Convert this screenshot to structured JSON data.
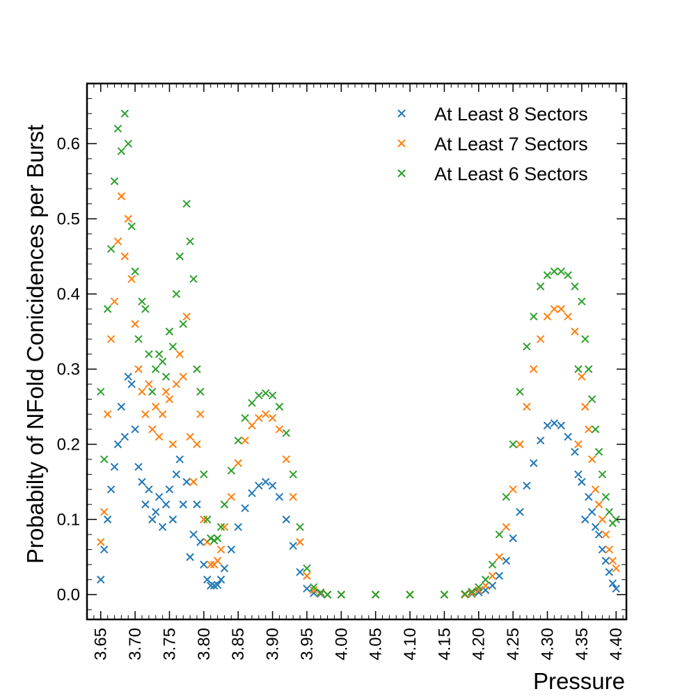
{
  "chart_data": {
    "type": "scatter",
    "title": "",
    "xlabel": "Pressure",
    "ylabel": "Probabilty of NFold Conicidences per Burst",
    "xlim": [
      3.63,
      4.415
    ],
    "ylim": [
      -0.033,
      0.68
    ],
    "xticks": [
      "3.65",
      "3.70",
      "3.75",
      "3.80",
      "3.85",
      "3.90",
      "3.95",
      "4.00",
      "4.05",
      "4.10",
      "4.15",
      "4.20",
      "4.25",
      "4.30",
      "4.35",
      "4.40"
    ],
    "yticks": [
      "0.0",
      "0.1",
      "0.2",
      "0.3",
      "0.4",
      "0.5",
      "0.6"
    ],
    "grid": false,
    "legend_position": "top-right",
    "marker": "x",
    "series": [
      {
        "name": "At Least 8 Sectors",
        "color": "#1f77b4",
        "x": [
          3.65,
          3.655,
          3.66,
          3.665,
          3.67,
          3.675,
          3.68,
          3.685,
          3.69,
          3.695,
          3.7,
          3.705,
          3.71,
          3.715,
          3.72,
          3.725,
          3.73,
          3.735,
          3.74,
          3.745,
          3.75,
          3.755,
          3.76,
          3.765,
          3.77,
          3.775,
          3.78,
          3.785,
          3.79,
          3.795,
          3.8,
          3.805,
          3.81,
          3.815,
          3.82,
          3.825,
          3.83,
          3.84,
          3.85,
          3.86,
          3.87,
          3.88,
          3.89,
          3.9,
          3.91,
          3.92,
          3.93,
          3.94,
          3.95,
          3.96,
          3.97,
          3.98,
          4.0,
          4.05,
          4.1,
          4.15,
          4.18,
          4.19,
          4.2,
          4.21,
          4.22,
          4.23,
          4.24,
          4.25,
          4.26,
          4.27,
          4.28,
          4.29,
          4.3,
          4.31,
          4.32,
          4.33,
          4.34,
          4.345,
          4.35,
          4.355,
          4.36,
          4.365,
          4.37,
          4.375,
          4.38,
          4.385,
          4.39,
          4.395,
          4.4
        ],
        "y": [
          0.02,
          0.06,
          0.1,
          0.14,
          0.17,
          0.2,
          0.25,
          0.21,
          0.29,
          0.28,
          0.22,
          0.17,
          0.15,
          0.12,
          0.14,
          0.1,
          0.11,
          0.13,
          0.09,
          0.12,
          0.14,
          0.1,
          0.16,
          0.18,
          0.12,
          0.15,
          0.05,
          0.08,
          0.12,
          0.07,
          0.04,
          0.02,
          0.012,
          0.012,
          0.013,
          0.02,
          0.035,
          0.06,
          0.09,
          0.115,
          0.135,
          0.145,
          0.15,
          0.145,
          0.13,
          0.1,
          0.065,
          0.03,
          0.008,
          0.002,
          0.001,
          0.0,
          0.0,
          0.0,
          0.0,
          0.0,
          0.0,
          0.001,
          0.003,
          0.006,
          0.012,
          0.025,
          0.045,
          0.075,
          0.11,
          0.145,
          0.175,
          0.205,
          0.225,
          0.228,
          0.225,
          0.21,
          0.19,
          0.16,
          0.15,
          0.1,
          0.13,
          0.11,
          0.09,
          0.08,
          0.06,
          0.045,
          0.03,
          0.015,
          0.008
        ]
      },
      {
        "name": "At Least 7 Sectors",
        "color": "#ff7f0e",
        "x": [
          3.65,
          3.655,
          3.66,
          3.665,
          3.67,
          3.675,
          3.68,
          3.685,
          3.69,
          3.695,
          3.7,
          3.705,
          3.71,
          3.715,
          3.72,
          3.725,
          3.73,
          3.735,
          3.74,
          3.745,
          3.75,
          3.755,
          3.76,
          3.765,
          3.77,
          3.775,
          3.78,
          3.785,
          3.79,
          3.795,
          3.8,
          3.805,
          3.81,
          3.815,
          3.82,
          3.825,
          3.83,
          3.84,
          3.85,
          3.86,
          3.87,
          3.88,
          3.89,
          3.9,
          3.91,
          3.92,
          3.93,
          3.94,
          3.95,
          3.96,
          3.97,
          3.98,
          4.0,
          4.05,
          4.1,
          4.15,
          4.18,
          4.19,
          4.2,
          4.21,
          4.22,
          4.23,
          4.24,
          4.25,
          4.26,
          4.27,
          4.28,
          4.29,
          4.3,
          4.31,
          4.32,
          4.33,
          4.34,
          4.345,
          4.35,
          4.355,
          4.36,
          4.365,
          4.37,
          4.375,
          4.38,
          4.385,
          4.39,
          4.395,
          4.4
        ],
        "y": [
          0.07,
          0.11,
          0.24,
          0.34,
          0.39,
          0.47,
          0.53,
          0.45,
          0.5,
          0.42,
          0.36,
          0.3,
          0.27,
          0.24,
          0.28,
          0.22,
          0.25,
          0.21,
          0.24,
          0.27,
          0.26,
          0.2,
          0.28,
          0.32,
          0.29,
          0.37,
          0.21,
          0.15,
          0.2,
          0.24,
          0.1,
          0.07,
          0.04,
          0.04,
          0.045,
          0.06,
          0.09,
          0.13,
          0.175,
          0.205,
          0.225,
          0.235,
          0.24,
          0.235,
          0.22,
          0.18,
          0.13,
          0.07,
          0.025,
          0.006,
          0.002,
          0.0,
          0.0,
          0.0,
          0.0,
          0.0,
          0.0,
          0.002,
          0.006,
          0.012,
          0.025,
          0.05,
          0.09,
          0.14,
          0.2,
          0.25,
          0.3,
          0.34,
          0.37,
          0.38,
          0.38,
          0.37,
          0.35,
          0.2,
          0.29,
          0.25,
          0.22,
          0.18,
          0.14,
          0.12,
          0.1,
          0.08,
          0.06,
          0.045,
          0.035
        ]
      },
      {
        "name": "At Least 6 Sectors",
        "color": "#2ca02c",
        "x": [
          3.65,
          3.655,
          3.66,
          3.665,
          3.67,
          3.675,
          3.68,
          3.685,
          3.69,
          3.695,
          3.7,
          3.705,
          3.71,
          3.715,
          3.72,
          3.725,
          3.73,
          3.735,
          3.74,
          3.745,
          3.75,
          3.755,
          3.76,
          3.765,
          3.77,
          3.775,
          3.78,
          3.785,
          3.79,
          3.795,
          3.8,
          3.805,
          3.81,
          3.815,
          3.82,
          3.825,
          3.83,
          3.84,
          3.85,
          3.86,
          3.87,
          3.88,
          3.89,
          3.9,
          3.91,
          3.92,
          3.93,
          3.94,
          3.95,
          3.96,
          3.97,
          3.98,
          4.0,
          4.05,
          4.1,
          4.15,
          4.18,
          4.19,
          4.2,
          4.21,
          4.22,
          4.23,
          4.24,
          4.25,
          4.26,
          4.27,
          4.28,
          4.29,
          4.3,
          4.31,
          4.32,
          4.33,
          4.34,
          4.345,
          4.35,
          4.355,
          4.36,
          4.365,
          4.37,
          4.375,
          4.38,
          4.385,
          4.39,
          4.395,
          4.4
        ],
        "y": [
          0.27,
          0.18,
          0.38,
          0.46,
          0.55,
          0.62,
          0.59,
          0.64,
          0.6,
          0.49,
          0.43,
          0.34,
          0.39,
          0.38,
          0.32,
          0.27,
          0.3,
          0.32,
          0.31,
          0.29,
          0.35,
          0.33,
          0.4,
          0.45,
          0.36,
          0.52,
          0.47,
          0.42,
          0.3,
          0.27,
          0.16,
          0.1,
          0.075,
          0.072,
          0.075,
          0.09,
          0.12,
          0.165,
          0.205,
          0.235,
          0.255,
          0.265,
          0.268,
          0.265,
          0.25,
          0.215,
          0.16,
          0.09,
          0.035,
          0.01,
          0.003,
          0.0,
          0.0,
          0.0,
          0.0,
          0.0,
          0.001,
          0.004,
          0.01,
          0.02,
          0.04,
          0.08,
          0.13,
          0.2,
          0.27,
          0.33,
          0.37,
          0.41,
          0.425,
          0.43,
          0.43,
          0.425,
          0.41,
          0.3,
          0.39,
          0.34,
          0.3,
          0.26,
          0.22,
          0.19,
          0.16,
          0.13,
          0.11,
          0.095,
          0.1
        ]
      }
    ]
  }
}
